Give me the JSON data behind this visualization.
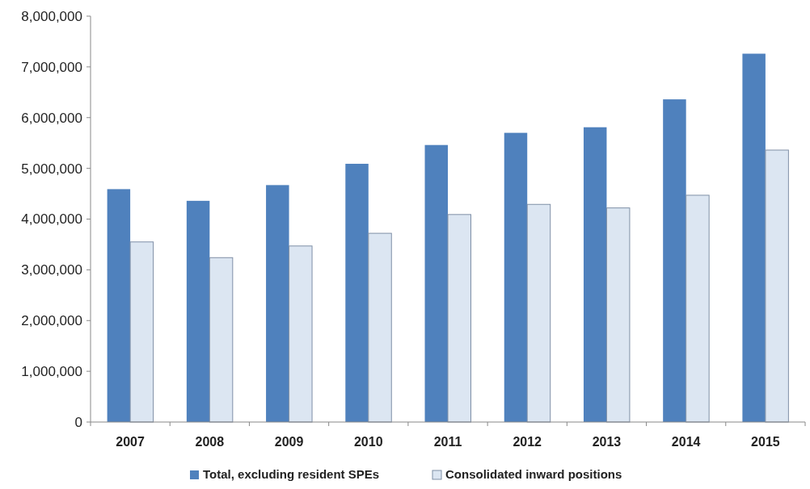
{
  "chart_data": {
    "type": "bar",
    "categories": [
      "2007",
      "2008",
      "2009",
      "2010",
      "2011",
      "2012",
      "2013",
      "2014",
      "2015"
    ],
    "series": [
      {
        "name": "Total, excluding resident SPEs",
        "color": "#4f81bd",
        "values": [
          4590000,
          4360000,
          4670000,
          5090000,
          5460000,
          5700000,
          5810000,
          6360000,
          7260000
        ]
      },
      {
        "name": "Consolidated inward positions",
        "color": "#dce6f2",
        "values": [
          3550000,
          3240000,
          3470000,
          3720000,
          4090000,
          4290000,
          4220000,
          4470000,
          5360000
        ]
      }
    ],
    "ylim": [
      0,
      8000000
    ],
    "yticks": [
      {
        "value": 0,
        "label": "0"
      },
      {
        "value": 1000000,
        "label": "1,000,000"
      },
      {
        "value": 2000000,
        "label": "2,000,000"
      },
      {
        "value": 3000000,
        "label": "3,000,000"
      },
      {
        "value": 4000000,
        "label": "4,000,000"
      },
      {
        "value": 5000000,
        "label": "5,000,000"
      },
      {
        "value": 6000000,
        "label": "6,000,000"
      },
      {
        "value": 7000000,
        "label": "7,000,000"
      },
      {
        "value": 8000000,
        "label": "8,000,000"
      }
    ],
    "legend": "bottom"
  }
}
